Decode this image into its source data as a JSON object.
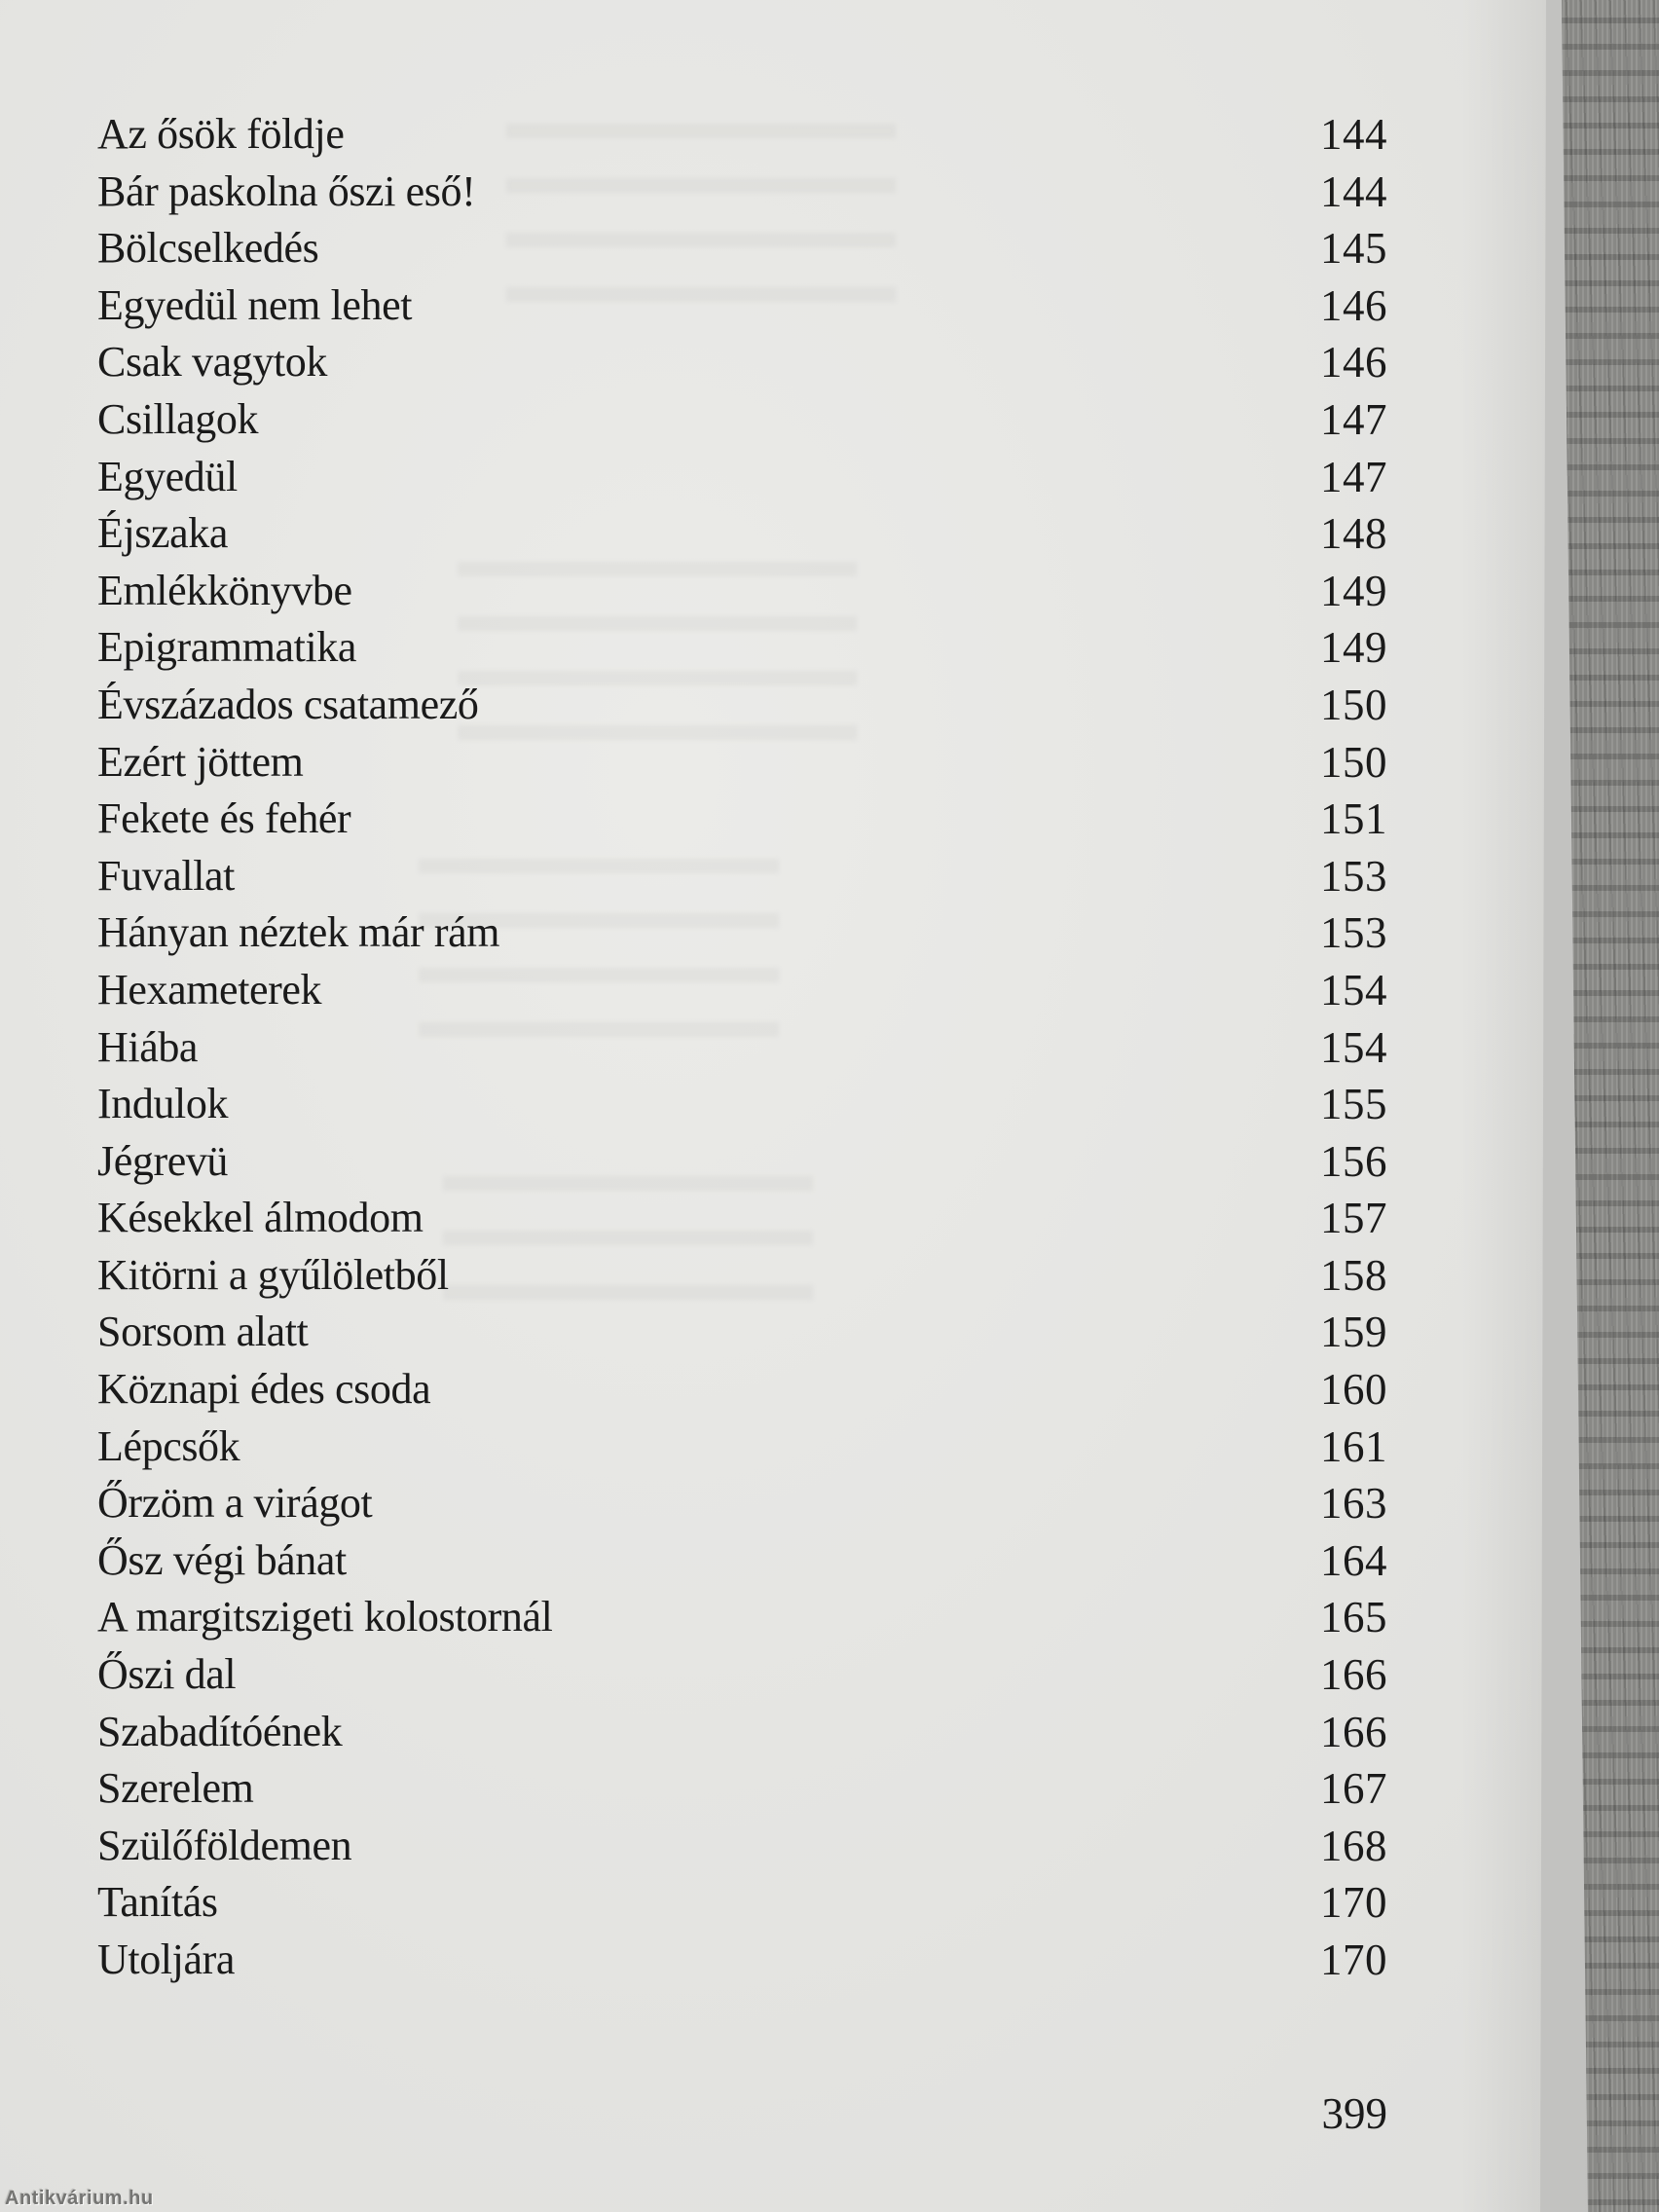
{
  "book_page": {
    "toc_entries": [
      {
        "title": "Az ősök földje",
        "page": "144"
      },
      {
        "title": "Bár paskolna őszi eső!",
        "page": "144"
      },
      {
        "title": "Bölcselkedés",
        "page": "145"
      },
      {
        "title": "Egyedül nem lehet",
        "page": "146"
      },
      {
        "title": "Csak vagytok",
        "page": "146"
      },
      {
        "title": "Csillagok",
        "page": "147"
      },
      {
        "title": "Egyedül",
        "page": "147"
      },
      {
        "title": "Éjszaka",
        "page": "148"
      },
      {
        "title": "Emlékkönyvbe",
        "page": "149"
      },
      {
        "title": "Epigrammatika",
        "page": "149"
      },
      {
        "title": "Évszázados csatamező",
        "page": "150"
      },
      {
        "title": "Ezért jöttem",
        "page": "150"
      },
      {
        "title": "Fekete és fehér",
        "page": "151"
      },
      {
        "title": "Fuvallat",
        "page": "153"
      },
      {
        "title": "Hányan néztek már rám",
        "page": "153"
      },
      {
        "title": "Hexameterek",
        "page": "154"
      },
      {
        "title": "Hiába",
        "page": "154"
      },
      {
        "title": "Indulok",
        "page": "155"
      },
      {
        "title": "Jégrevü",
        "page": "156"
      },
      {
        "title": "Késekkel álmodom",
        "page": "157"
      },
      {
        "title": "Kitörni a gyűlöletből",
        "page": "158"
      },
      {
        "title": "Sorsom alatt",
        "page": "159"
      },
      {
        "title": "Köznapi édes csoda",
        "page": "160"
      },
      {
        "title": "Lépcsők",
        "page": "161"
      },
      {
        "title": "Őrzöm a virágot",
        "page": "163"
      },
      {
        "title": "Ősz végi bánat",
        "page": "164"
      },
      {
        "title": "A margitszigeti kolostornál",
        "page": "165"
      },
      {
        "title": "Őszi dal",
        "page": "166"
      },
      {
        "title": "Szabadítóének",
        "page": "166"
      },
      {
        "title": "Szerelem",
        "page": "167"
      },
      {
        "title": "Szülőföldemen",
        "page": "168"
      },
      {
        "title": "Tanítás",
        "page": "170"
      },
      {
        "title": "Utoljára",
        "page": "170"
      }
    ],
    "folio": "399",
    "watermark": "Antikvárium.hu"
  },
  "colors": {
    "paper": "#e9e9e6",
    "ink": "#1a1a1a",
    "edge_highlight": "#d2d2d0",
    "fore_edge": "#8f8f8c",
    "watermark": "#757573"
  }
}
